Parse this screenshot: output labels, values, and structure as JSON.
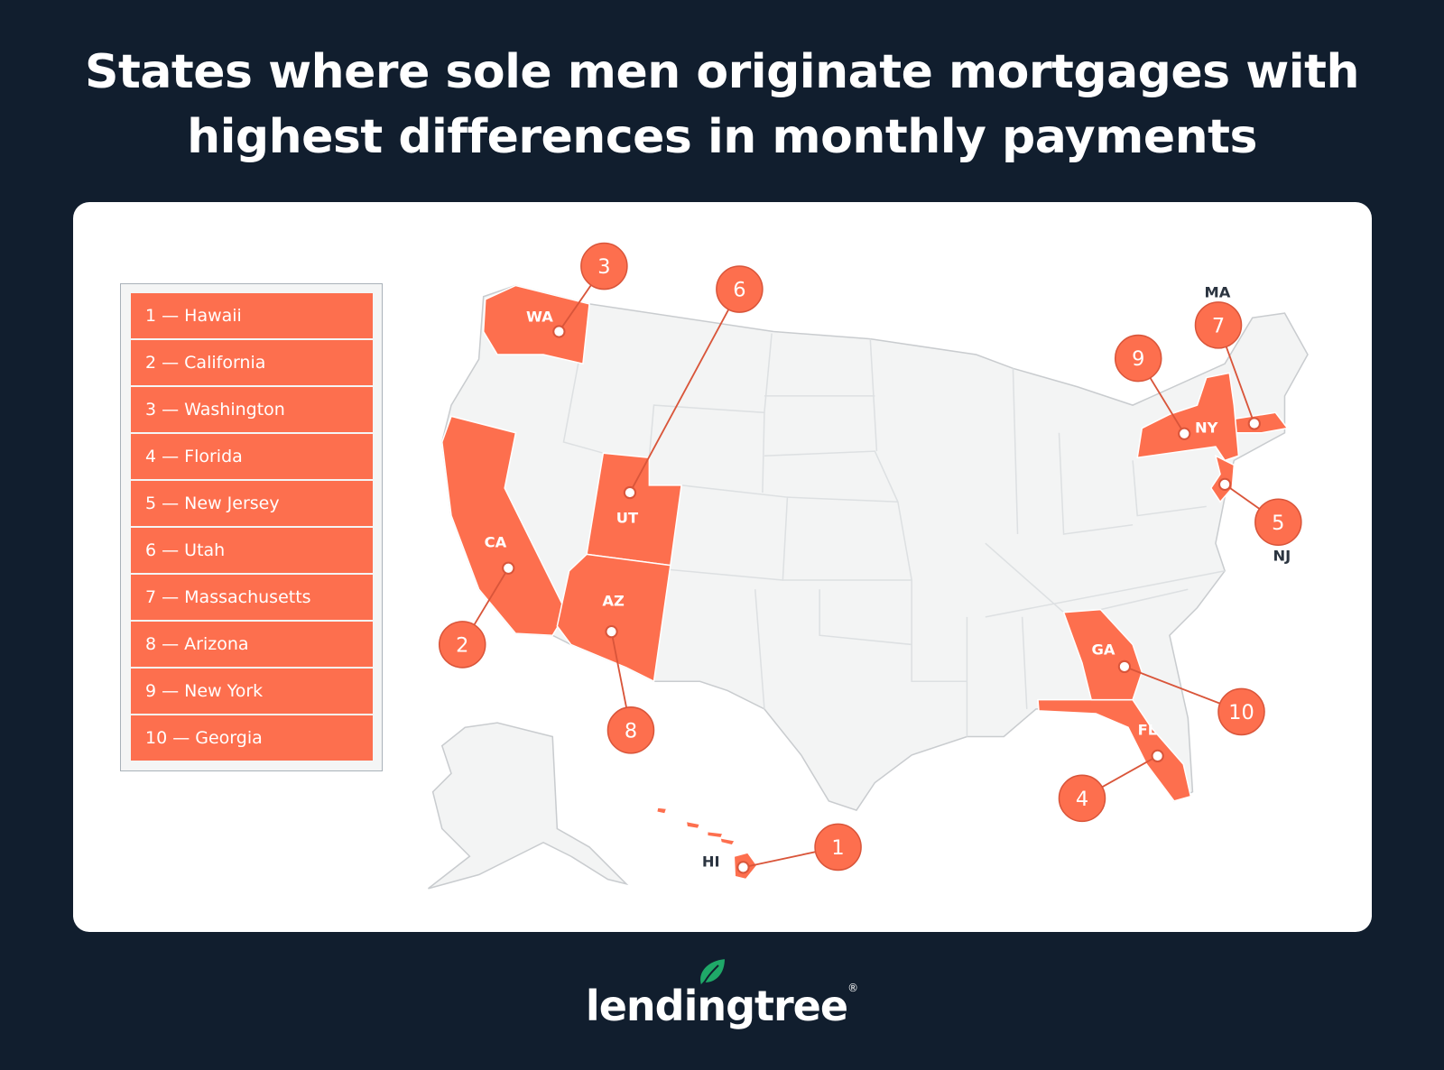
{
  "title": {
    "line1": "States where sole men originate mortgages with",
    "line2": "highest differences in monthly payments"
  },
  "legend": [
    {
      "label": "1 — Hawaii"
    },
    {
      "label": "2 — California"
    },
    {
      "label": "3 — Washington"
    },
    {
      "label": "4 — Florida"
    },
    {
      "label": "5 — New Jersey"
    },
    {
      "label": "6 — Utah"
    },
    {
      "label": "7 — Massachusetts"
    },
    {
      "label": "8 — Arizona"
    },
    {
      "label": "9 — New York"
    },
    {
      "label": "10 — Georgia"
    }
  ],
  "markers": [
    {
      "rank": "1",
      "abbr": "HI"
    },
    {
      "rank": "2",
      "abbr": "CA"
    },
    {
      "rank": "3",
      "abbr": "WA"
    },
    {
      "rank": "4",
      "abbr": "FL"
    },
    {
      "rank": "5",
      "abbr": "NJ"
    },
    {
      "rank": "6",
      "abbr": "UT"
    },
    {
      "rank": "7",
      "abbr": "MA"
    },
    {
      "rank": "8",
      "abbr": "AZ"
    },
    {
      "rank": "9",
      "abbr": "NY"
    },
    {
      "rank": "10",
      "abbr": "GA"
    }
  ],
  "colors": {
    "background": "#111e2e",
    "highlight": "#fd6f4e",
    "base_state": "#f3f4f4",
    "logo_leaf": "#1fa868"
  },
  "logo": {
    "text": "lendingtree",
    "mark": "®"
  }
}
